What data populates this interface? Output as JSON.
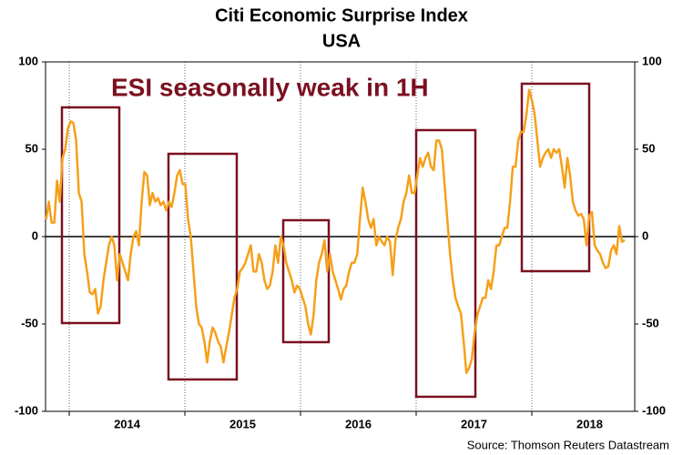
{
  "chart_data": {
    "type": "line",
    "title": "Citi Economic Surprise Index",
    "subtitle": "USA",
    "annotation": "ESI seasonally weak in 1H",
    "source": "Source: Thomson Reuters Datastream",
    "xlim": [
      2013.795,
      2018.89
    ],
    "xticks": [
      2014,
      2015,
      2016,
      2017,
      2018
    ],
    "ylim": [
      -100,
      100
    ],
    "yticks": [
      -100,
      -50,
      0,
      50,
      100
    ],
    "y2lim": [
      -100,
      100
    ],
    "y2ticks": [
      -100,
      -50,
      0,
      50,
      100
    ],
    "grid": true,
    "x": [
      2013.8,
      2013.8236,
      2013.8472,
      2013.8708,
      2013.8944,
      2013.918,
      2013.9416,
      2013.9652,
      2013.9888,
      2014.0124,
      2014.036,
      2014.0596,
      2014.0832,
      2014.1068,
      2014.1304,
      2014.154,
      2014.1776,
      2014.2012,
      2014.2248,
      2014.2484,
      2014.272,
      2014.2956,
      2014.3192,
      2014.3428,
      2014.3664,
      2014.39,
      2014.4136,
      2014.4372,
      2014.4608,
      2014.4844,
      2014.508,
      2014.5316,
      2014.5552,
      2014.5788,
      2014.6024,
      2014.626,
      2014.6496,
      2014.6732,
      2014.6968,
      2014.7204,
      2014.744,
      2014.7676,
      2014.7912,
      2014.8148,
      2014.8384,
      2014.862,
      2014.8856,
      2014.9092,
      2014.9328,
      2014.9564,
      2014.98,
      2015.0036,
      2015.0272,
      2015.0508,
      2015.0744,
      2015.098,
      2015.1216,
      2015.1452,
      2015.1688,
      2015.1924,
      2015.216,
      2015.2396,
      2015.2632,
      2015.2868,
      2015.3104,
      2015.334,
      2015.3576,
      2015.3812,
      2015.4048,
      2015.4284,
      2015.452,
      2015.4756,
      2015.4992,
      2015.5228,
      2015.5464,
      2015.57,
      2015.5936,
      2015.6172,
      2015.6408,
      2015.6644,
      2015.688,
      2015.7116,
      2015.7352,
      2015.7588,
      2015.7824,
      2015.806,
      2015.8296,
      2015.8532,
      2015.8768,
      2015.9004,
      2015.924,
      2015.9476,
      2015.9712,
      2015.9948,
      2016.0184,
      2016.042,
      2016.0656,
      2016.0892,
      2016.1128,
      2016.1364,
      2016.16,
      2016.1836,
      2016.2072,
      2016.2308,
      2016.2544,
      2016.278,
      2016.3016,
      2016.3252,
      2016.3488,
      2016.3724,
      2016.396,
      2016.4196,
      2016.4432,
      2016.4668,
      2016.4904,
      2016.514,
      2016.5376,
      2016.5612,
      2016.5848,
      2016.6084,
      2016.632,
      2016.6556,
      2016.6792,
      2016.7028,
      2016.7264,
      2016.75,
      2016.7736,
      2016.7972,
      2016.8208,
      2016.8444,
      2016.868,
      2016.8916,
      2016.9152,
      2016.9388,
      2016.9624,
      2016.986,
      2017.0096,
      2017.0332,
      2017.0568,
      2017.0804,
      2017.104,
      2017.1276,
      2017.1512,
      2017.1748,
      2017.1984,
      2017.222,
      2017.2456,
      2017.2692,
      2017.2928,
      2017.3164,
      2017.34,
      2017.3636,
      2017.3872,
      2017.4108,
      2017.4344,
      2017.458,
      2017.4816,
      2017.5052,
      2017.5288,
      2017.5524,
      2017.576,
      2017.5996,
      2017.6232,
      2017.6468,
      2017.6704,
      2017.694,
      2017.7176,
      2017.7412,
      2017.7648,
      2017.7884,
      2017.812,
      2017.8356,
      2017.8592,
      2017.8828,
      2017.9064,
      2017.93,
      2017.9536,
      2017.9772,
      2018.0008,
      2018.0244,
      2018.048,
      2018.0716,
      2018.0952,
      2018.1188,
      2018.1424,
      2018.166,
      2018.1896,
      2018.2132,
      2018.2368,
      2018.2604,
      2018.284,
      2018.3076,
      2018.3312,
      2018.3548,
      2018.3784,
      2018.402,
      2018.4256,
      2018.4492,
      2018.4728,
      2018.4964,
      2018.52,
      2018.5436,
      2018.5672,
      2018.5908,
      2018.6144,
      2018.638,
      2018.6616,
      2018.6852,
      2018.7088,
      2018.7324,
      2018.756,
      2018.7796,
      2018.8032
    ],
    "series": [
      {
        "color": "#f5a01a",
        "values": [
          10,
          20,
          8,
          8,
          32,
          20,
          45,
          50,
          62,
          66,
          65,
          55,
          25,
          20,
          -10,
          -20,
          -32,
          -33,
          -30,
          -44,
          -40,
          -25,
          -15,
          -5,
          0,
          -5,
          -25,
          -10,
          -15,
          -20,
          -25,
          -10,
          0,
          3,
          -5,
          20,
          37,
          35,
          18,
          25,
          20,
          22,
          18,
          20,
          15,
          20,
          17,
          25,
          35,
          38,
          30,
          30,
          10,
          0,
          -20,
          -40,
          -50,
          -52,
          -60,
          -72,
          -60,
          -52,
          -55,
          -60,
          -63,
          -72,
          -63,
          -55,
          -45,
          -35,
          -30,
          -20,
          -18,
          -15,
          -10,
          -5,
          -20,
          -20,
          -10,
          -15,
          -25,
          -30,
          -28,
          -20,
          -5,
          -15,
          0,
          -5,
          -15,
          -20,
          -25,
          -32,
          -28,
          -30,
          -35,
          -40,
          -50,
          -56,
          -45,
          -25,
          -15,
          -10,
          -2,
          -20,
          -10,
          -20,
          -25,
          -30,
          -36,
          -30,
          -28,
          -20,
          -15,
          -15,
          -10,
          10,
          28,
          20,
          10,
          5,
          10,
          -5,
          0,
          -3,
          -5,
          0,
          -3,
          -22,
          -2,
          5,
          10,
          20,
          25,
          35,
          25,
          25,
          35,
          45,
          40,
          45,
          48,
          40,
          38,
          55,
          55,
          50,
          30,
          10,
          -10,
          -25,
          -35,
          -40,
          -44,
          -60,
          -78,
          -75,
          -70,
          -55,
          -45,
          -40,
          -35,
          -35,
          -25,
          -30,
          -20,
          -5,
          -5,
          0,
          5,
          5,
          20,
          40,
          40,
          55,
          60,
          60,
          70,
          84,
          78,
          70,
          55,
          40,
          45,
          48,
          50,
          45,
          50,
          48,
          50,
          40,
          28,
          45,
          35,
          20,
          15,
          12,
          13,
          10,
          -5,
          12,
          14,
          -5,
          -8,
          -10,
          -15,
          -18,
          -17,
          -8,
          -5,
          -10,
          6,
          -3,
          -2
        ]
      }
    ]
  }
}
